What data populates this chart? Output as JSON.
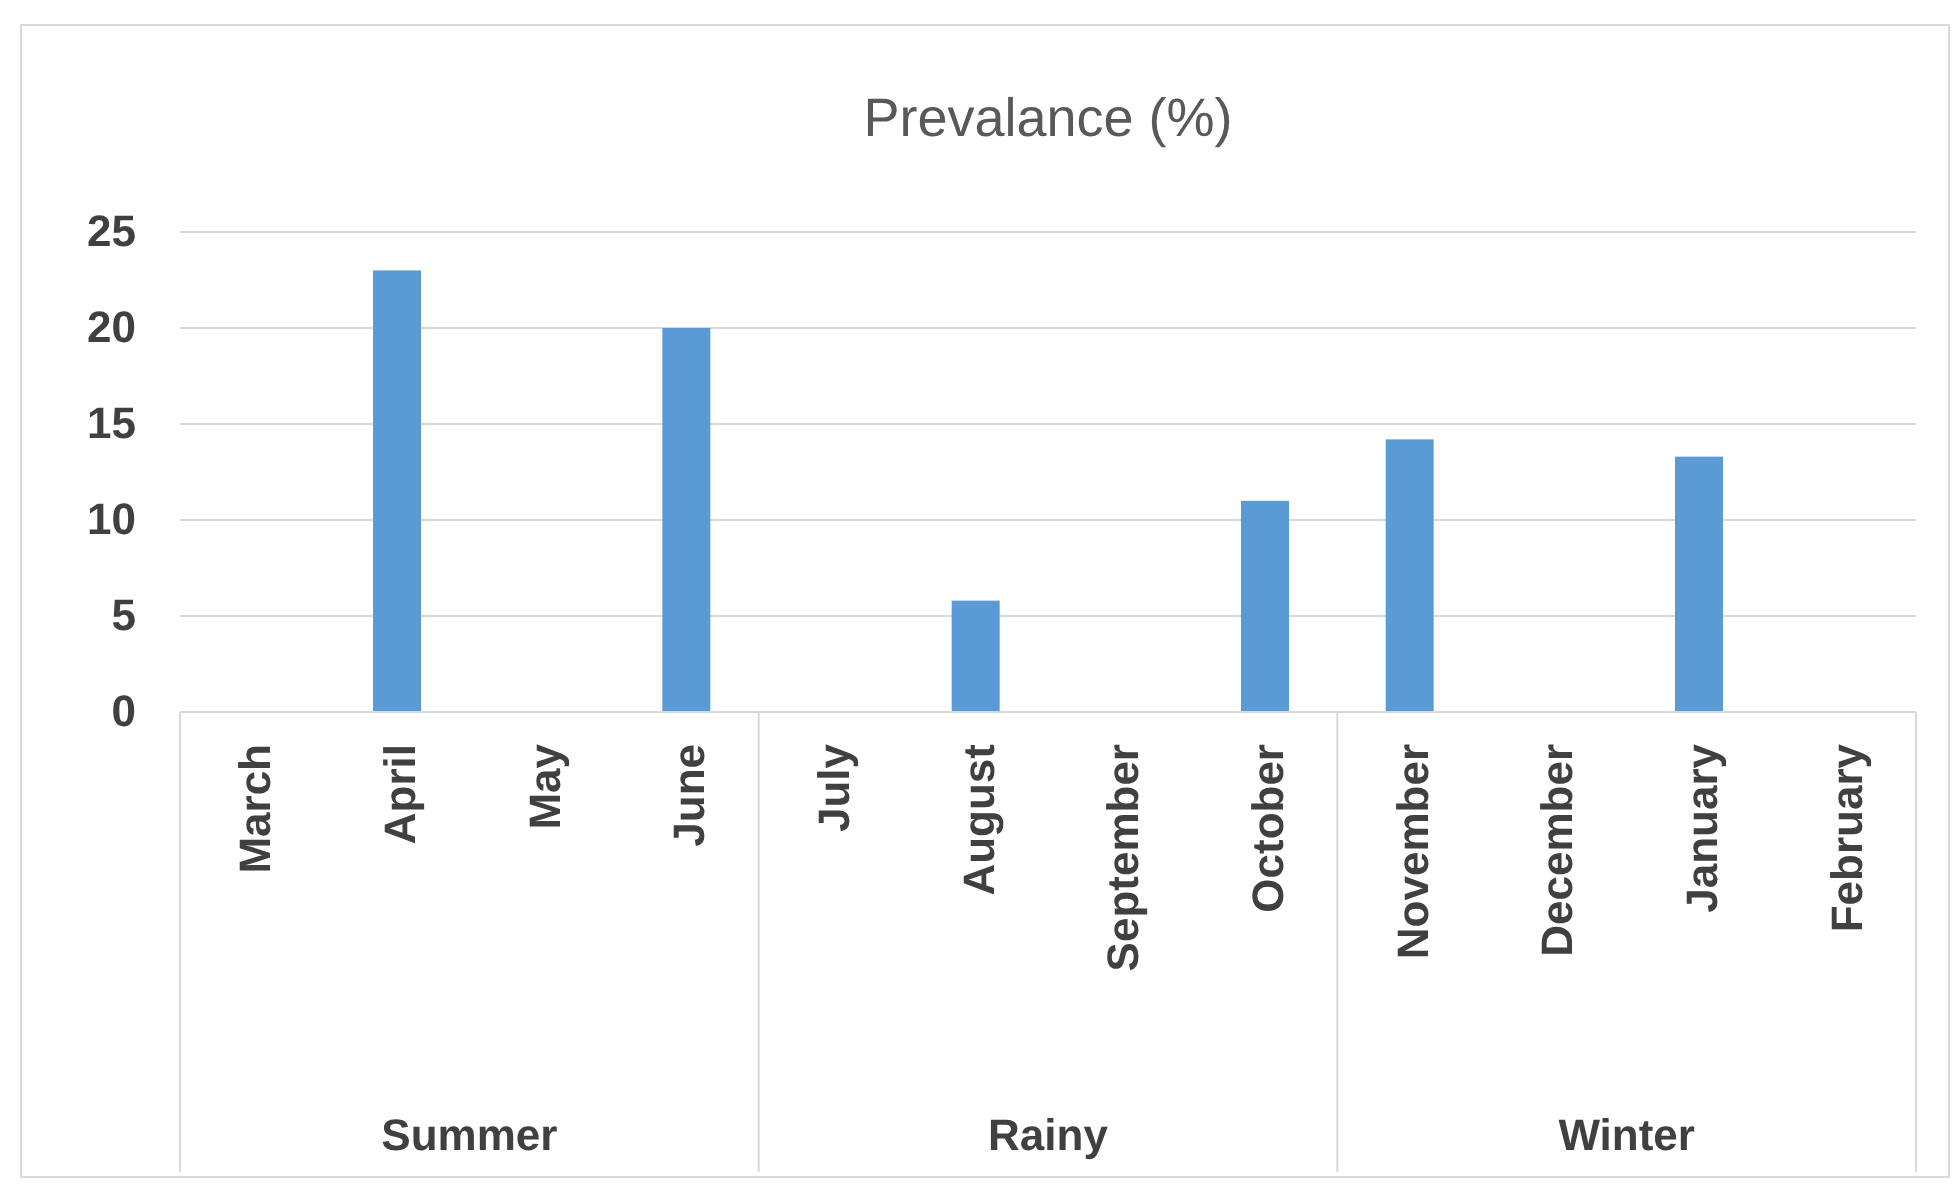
{
  "chart_data": {
    "type": "bar",
    "title": "Prevalance (%)",
    "categories": [
      "March",
      "April",
      "May",
      "June",
      "July",
      "August",
      "September",
      "October",
      "November",
      "December",
      "January",
      "February"
    ],
    "values": [
      0,
      23,
      0,
      20,
      0,
      5.8,
      0,
      11,
      14.2,
      0,
      13.3,
      0
    ],
    "color": "#5b9bd5",
    "ylim": [
      0,
      25
    ],
    "yticks": [
      0,
      5,
      10,
      15,
      20,
      25
    ],
    "grid": "y",
    "annotations": [
      "Summer",
      "Rainy",
      "Winter"
    ]
  }
}
